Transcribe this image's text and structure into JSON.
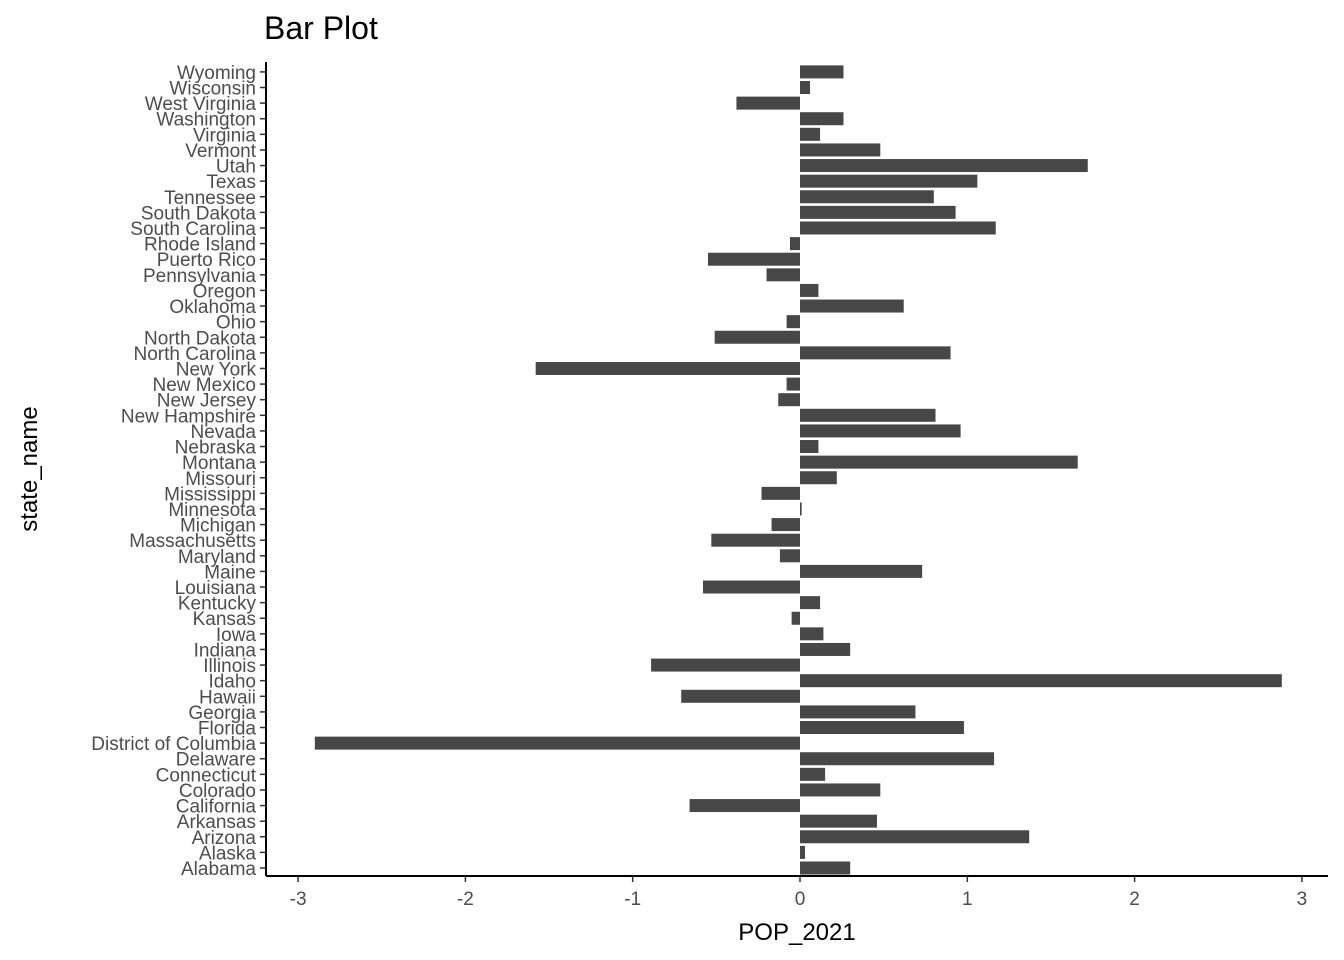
{
  "chart_data": {
    "type": "bar",
    "orientation": "horizontal",
    "title": "Bar Plot",
    "xlabel": "POP_2021",
    "ylabel": "state_name",
    "xlim": [
      -3.1,
      3.1
    ],
    "x_ticks": [
      -3,
      -2,
      -1,
      0,
      1,
      2,
      3
    ],
    "grid": false,
    "bar_color": "#474747",
    "categories": [
      "Alabama",
      "Alaska",
      "Arizona",
      "Arkansas",
      "California",
      "Colorado",
      "Connecticut",
      "Delaware",
      "District of Columbia",
      "Florida",
      "Georgia",
      "Hawaii",
      "Idaho",
      "Illinois",
      "Indiana",
      "Iowa",
      "Kansas",
      "Kentucky",
      "Louisiana",
      "Maine",
      "Maryland",
      "Massachusetts",
      "Michigan",
      "Minnesota",
      "Mississippi",
      "Missouri",
      "Montana",
      "Nebraska",
      "Nevada",
      "New Hampshire",
      "New Jersey",
      "New Mexico",
      "New York",
      "North Carolina",
      "North Dakota",
      "Ohio",
      "Oklahoma",
      "Oregon",
      "Pennsylvania",
      "Puerto Rico",
      "Rhode Island",
      "South Carolina",
      "South Dakota",
      "Tennessee",
      "Texas",
      "Utah",
      "Vermont",
      "Virginia",
      "Washington",
      "West Virginia",
      "Wisconsin",
      "Wyoming"
    ],
    "values": [
      0.3,
      0.03,
      1.37,
      0.46,
      -0.66,
      0.48,
      0.15,
      1.16,
      -2.9,
      0.98,
      0.69,
      -0.71,
      2.88,
      -0.89,
      0.3,
      0.14,
      -0.05,
      0.12,
      -0.58,
      0.73,
      -0.12,
      -0.53,
      -0.17,
      0.01,
      -0.23,
      0.22,
      1.66,
      0.11,
      0.96,
      0.81,
      -0.13,
      -0.08,
      -1.58,
      0.9,
      -0.51,
      -0.08,
      0.62,
      0.11,
      -0.2,
      -0.55,
      -0.06,
      1.17,
      0.93,
      0.8,
      1.06,
      1.72,
      0.48,
      0.12,
      0.26,
      -0.38,
      0.06,
      0.26
    ]
  }
}
